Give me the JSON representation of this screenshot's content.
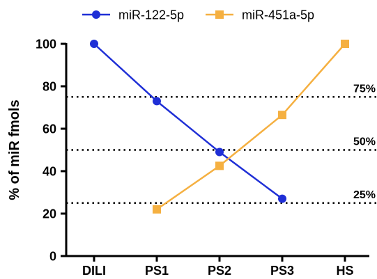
{
  "chart_data": {
    "type": "line",
    "title": "",
    "xlabel": "",
    "ylabel": "% of miR fmols",
    "categories": [
      "DILI",
      "PS1",
      "PS2",
      "PS3",
      "HS"
    ],
    "ylim": [
      0,
      100
    ],
    "yticks": [
      "0",
      "20",
      "40",
      "60",
      "80",
      "100"
    ],
    "grid": false,
    "legend_position": "top",
    "series": [
      {
        "name": "miR-122-5p",
        "color": "#1f2fd6",
        "marker": "circle",
        "values": [
          100,
          73,
          49,
          27,
          null
        ]
      },
      {
        "name": "miR-451a-5p",
        "color": "#f5b041",
        "marker": "square",
        "values": [
          null,
          22,
          42.5,
          66.5,
          100
        ]
      }
    ],
    "reference_lines": [
      {
        "y": 75,
        "label": "75%"
      },
      {
        "y": 50,
        "label": "50%"
      },
      {
        "y": 25,
        "label": "25%"
      }
    ]
  }
}
